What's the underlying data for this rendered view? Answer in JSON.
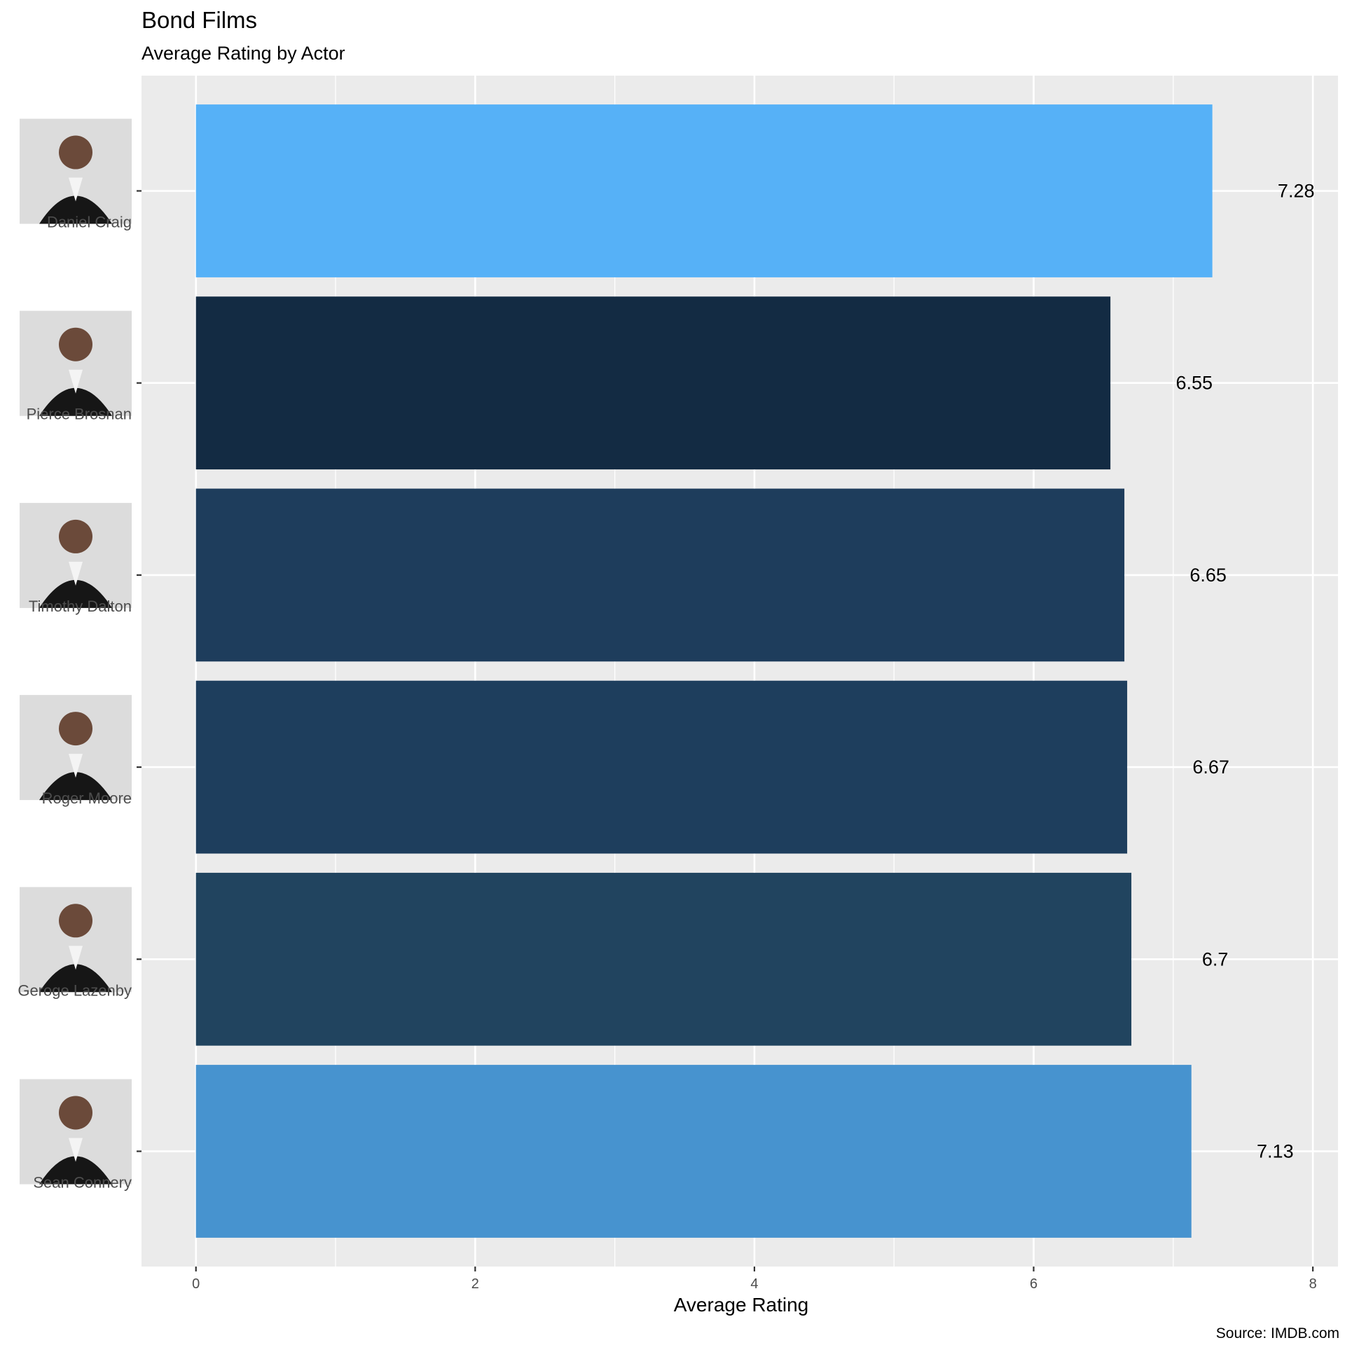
{
  "title": "Bond Films",
  "subtitle": "Average Rating by Actor",
  "caption": "Source: IMDB.com",
  "chart_data": {
    "type": "bar",
    "orientation": "horizontal",
    "categories": [
      "Daniel Craig",
      "Pierce Brosnan",
      "Timothy Dalton",
      "Roger Moore",
      "Geroge Lazenby",
      "Sean Connery"
    ],
    "values": [
      7.28,
      6.55,
      6.65,
      6.67,
      6.7,
      7.13
    ],
    "value_labels": [
      "7.28",
      "6.55",
      "6.65",
      "6.67",
      "6.7",
      "7.13"
    ],
    "colors": [
      "#56b1f7",
      "#132b43",
      "#1e3d5c",
      "#1e3e5d",
      "#21445f",
      "#4793cf"
    ],
    "xlabel": "Average Rating",
    "ylabel": "",
    "xlim": [
      -0.39,
      8.18
    ],
    "xticks": [
      0,
      2,
      4,
      6,
      8
    ],
    "xtick_labels": [
      "0",
      "2",
      "4",
      "6",
      "8"
    ],
    "grid": true,
    "actor_photos": [
      "actor-photo",
      "actor-photo",
      "actor-photo",
      "actor-photo",
      "actor-photo",
      "actor-photo"
    ]
  }
}
